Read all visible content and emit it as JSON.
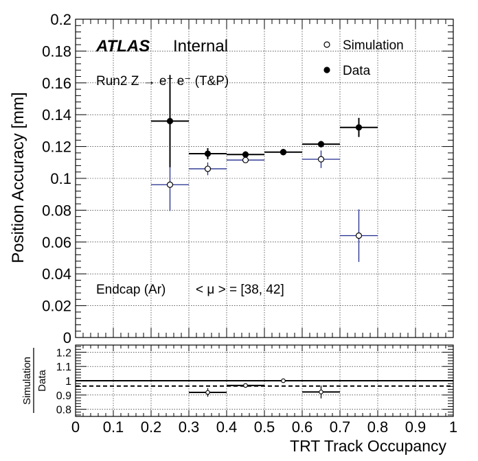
{
  "chart_data": [
    {
      "type": "scatter",
      "panel": "main",
      "ylabel": "Position Accuracy [mm]",
      "xlim": [
        0,
        1
      ],
      "ylim": [
        0,
        0.2
      ],
      "grid": true,
      "legend_position": "top-right",
      "yticks": [
        "0",
        "0.02",
        "0.04",
        "0.06",
        "0.08",
        "0.1",
        "0.12",
        "0.14",
        "0.16",
        "0.18",
        "0.2"
      ],
      "annotations": {
        "experiment": "ATLAS",
        "status": "Internal",
        "selection": "Run2 Z → e⁺ e⁻ (T&P)",
        "region": "Endcap (Ar)",
        "pileup": "< μ > = [38, 42]"
      },
      "series": [
        {
          "name": "Simulation",
          "marker": "open-circle",
          "color": "#1f2a8c",
          "x": [
            0.25,
            0.35,
            0.45,
            0.55,
            0.65,
            0.75
          ],
          "xerr": [
            0.05,
            0.05,
            0.05,
            0.05,
            0.05,
            0.05
          ],
          "y": [
            0.096,
            0.106,
            0.1115,
            0.1165,
            0.112,
            0.064
          ],
          "yerr": [
            0.0165,
            0.004,
            0.001,
            0.001,
            0.0055,
            0.0165
          ]
        },
        {
          "name": "Data",
          "marker": "filled-circle",
          "color": "#000000",
          "x": [
            0.25,
            0.35,
            0.45,
            0.55,
            0.65,
            0.75
          ],
          "xerr": [
            0.05,
            0.05,
            0.05,
            0.05,
            0.05,
            0.05
          ],
          "y": [
            0.136,
            0.1155,
            0.115,
            0.1165,
            0.1215,
            0.132
          ],
          "yerr": [
            0.029,
            0.0035,
            0.002,
            0.001,
            0.002,
            0.006
          ]
        }
      ]
    },
    {
      "type": "scatter",
      "panel": "ratio",
      "ylabel_numerator": "Simulation",
      "ylabel_denominator": "Data",
      "xlabel": "TRT Track Occupancy",
      "xlim": [
        0,
        1
      ],
      "ylim": [
        0.75,
        1.25
      ],
      "grid": true,
      "xticks": [
        "0",
        "0.1",
        "0.2",
        "0.3",
        "0.4",
        "0.5",
        "0.6",
        "0.7",
        "0.8",
        "0.9",
        "1"
      ],
      "yticks": [
        "0.8",
        "0.9",
        "1",
        "1.1",
        "1.2"
      ],
      "reference_line": 1.0,
      "dashed_line": 0.963,
      "series": [
        {
          "name": "Simulation / Data",
          "x": [
            0.35,
            0.45,
            0.55,
            0.65
          ],
          "xerr": [
            0.05,
            0.05,
            0.0,
            0.05
          ],
          "y": [
            0.918,
            0.967,
            1.0,
            0.921
          ],
          "yerr": [
            0.03,
            0.012,
            0.012,
            0.045
          ]
        }
      ]
    }
  ]
}
